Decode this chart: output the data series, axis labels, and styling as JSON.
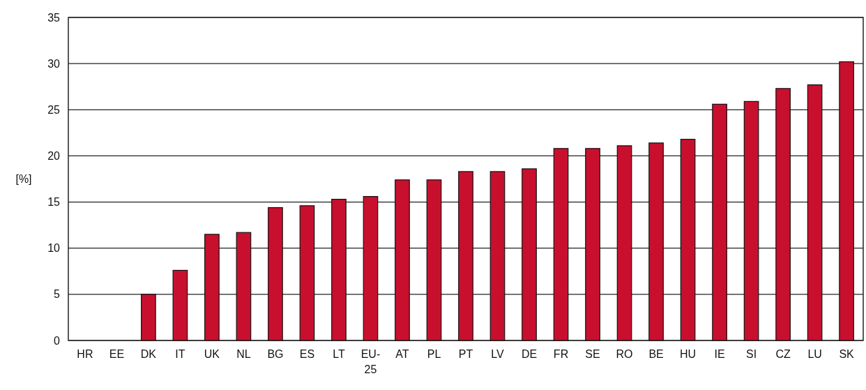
{
  "chart_data": {
    "type": "bar",
    "ylabel": "[%]",
    "categories": [
      "HR",
      "EE",
      "DK",
      "IT",
      "UK",
      "NL",
      "BG",
      "ES",
      "LT",
      "EU-25",
      "AT",
      "PL",
      "PT",
      "LV",
      "DE",
      "FR",
      "SE",
      "RO",
      "BE",
      "HU",
      "IE",
      "SI",
      "CZ",
      "LU",
      "SK"
    ],
    "values": [
      0,
      0,
      5.0,
      7.6,
      11.5,
      11.7,
      14.4,
      14.6,
      15.3,
      15.6,
      17.4,
      17.4,
      18.3,
      18.3,
      18.6,
      20.8,
      20.8,
      21.1,
      21.4,
      21.8,
      25.6,
      25.9,
      27.3,
      27.7,
      30.2
    ],
    "color": "#c8102e",
    "ylim": [
      0,
      35
    ],
    "yticks": [
      0,
      5,
      10,
      15,
      20,
      25,
      30,
      35
    ],
    "grid": "y"
  }
}
